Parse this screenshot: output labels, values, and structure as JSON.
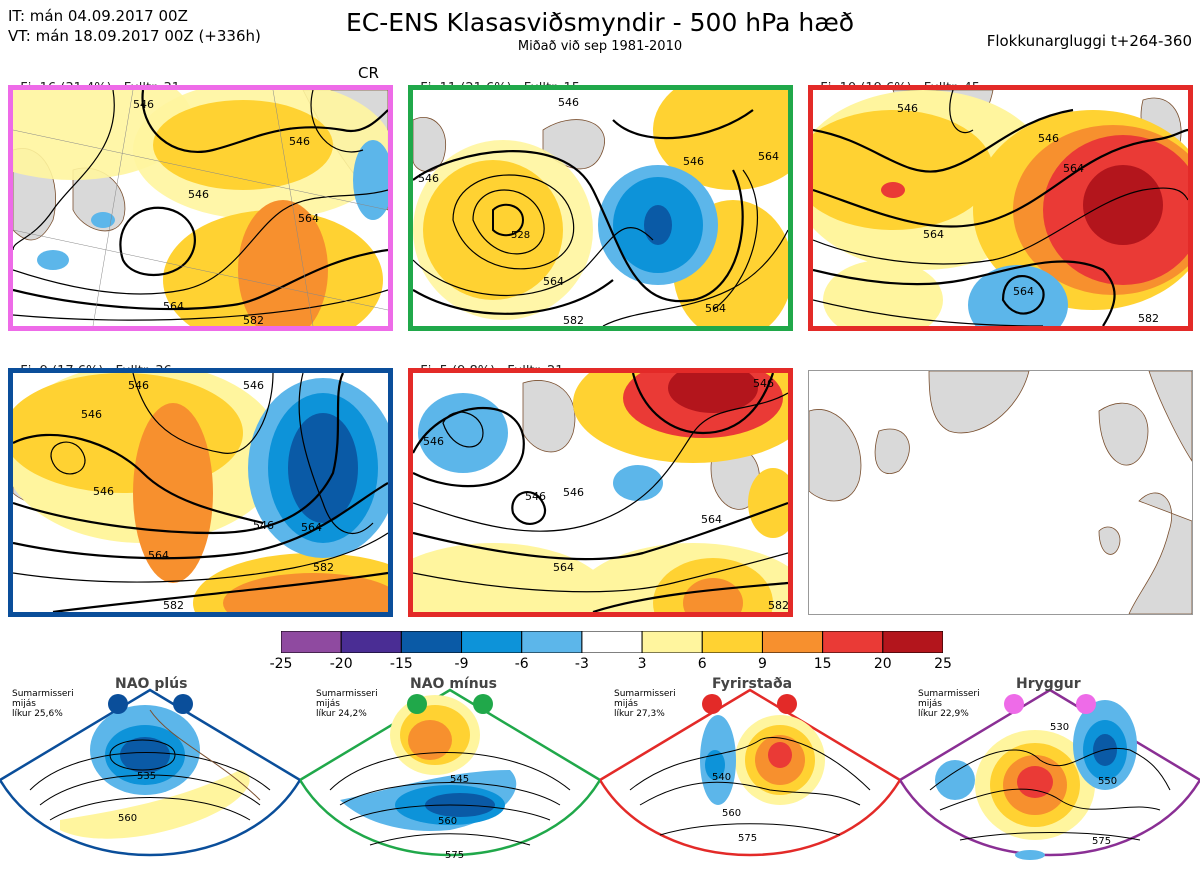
{
  "header": {
    "init_time": "IT: mán 04.09.2017 00Z",
    "valid_time": "VT: mán 18.09.2017 00Z  (+336h)",
    "title": "EC-ENS Klasasviðsmyndir - 500 hPa hæð",
    "subtitle": "Miðað við sep 1981-2010",
    "window": "Flokkunargluggi t+264-360"
  },
  "colors": {
    "neg25": "#8f4aa0",
    "neg20": "#4a2d94",
    "neg15": "#0a5aa6",
    "neg9": "#0d93d9",
    "neg6": "#5cb6ea",
    "neg3": "#ffffff",
    "pos3": "#fff59e",
    "pos6": "#ffd232",
    "pos9": "#f7902e",
    "pos15": "#ea3a36",
    "pos20": "#b3151c",
    "land": "#d9d9d9",
    "coast": "#7a5030",
    "contour": "#000000",
    "pink": "#ee6be8",
    "green": "#20a84a",
    "red": "#e32a28",
    "blue": "#0a4e9a",
    "purple": "#8a2f94"
  },
  "clusters": [
    {
      "id": "c16",
      "name": "Fj. 16 (31.4%)",
      "members": "Fulltr. 31",
      "extra": "CR",
      "frame": "pink",
      "contours": [
        "546",
        "546",
        "564",
        "546",
        "564",
        "582"
      ]
    },
    {
      "id": "c11",
      "name": "Fj. 11 (21.6%)",
      "members": "Fulltr. 15",
      "frame": "green",
      "contours": [
        "546",
        "546",
        "546",
        "528",
        "564",
        "564",
        "564",
        "582"
      ]
    },
    {
      "id": "c10",
      "name": "Fj. 10 (19.6%)",
      "members": "Fulltr. 45",
      "frame": "red",
      "contours": [
        "546",
        "546",
        "564",
        "564",
        "564",
        "582"
      ]
    },
    {
      "id": "c9",
      "name": "Fj. 9 (17.6%)",
      "members": "Fulltr. 36",
      "frame": "blue",
      "contours": [
        "546",
        "546",
        "546",
        "546",
        "564",
        "564",
        "582",
        "582",
        "546"
      ]
    },
    {
      "id": "c5",
      "name": "Fj. 5 (9.8%)",
      "members": "Fulltr. 21",
      "frame": "red",
      "contours": [
        "546",
        "546",
        "546",
        "564",
        "564",
        "582",
        "546"
      ]
    }
  ],
  "colorbar": {
    "ticks": [
      "-25",
      "-20",
      "-15",
      "-9",
      "-6",
      "-3",
      "3",
      "6",
      "9",
      "15",
      "20",
      "25"
    ],
    "colors": [
      "#8f4aa0",
      "#4a2d94",
      "#0a5aa6",
      "#0d93d9",
      "#5cb6ea",
      "#ffffff",
      "#fff59e",
      "#ffd232",
      "#f7902e",
      "#ea3a36",
      "#b3151c"
    ]
  },
  "regimes": [
    {
      "id": "nao-plus",
      "name": "NAO plús",
      "line1": "Sumarmisseri",
      "line2": "mijás",
      "line3": "líkur 25,6%",
      "frame": "blue",
      "dot": "#0a4e9a",
      "labels": [
        "535",
        "560"
      ]
    },
    {
      "id": "nao-minus",
      "name": "NAO mínus",
      "line1": "Sumarmisseri",
      "line2": "mijás",
      "line3": "líkur 24,2%",
      "frame": "green",
      "dot": "#20a84a",
      "labels": [
        "545",
        "560",
        "575"
      ]
    },
    {
      "id": "blocking",
      "name": "Fyrirstaða",
      "line1": "Sumarmisseri",
      "line2": "mijás",
      "line3": "líkur 27,3%",
      "frame": "red",
      "dot": "#e32a28",
      "labels": [
        "540",
        "560",
        "575"
      ]
    },
    {
      "id": "ridge",
      "name": "Hryggur",
      "line1": "Sumarmisseri",
      "line2": "mijás",
      "line3": "líkur 22,9%",
      "frame": "purple",
      "dot": "#ee6be8",
      "labels": [
        "530",
        "550",
        "575"
      ]
    }
  ]
}
